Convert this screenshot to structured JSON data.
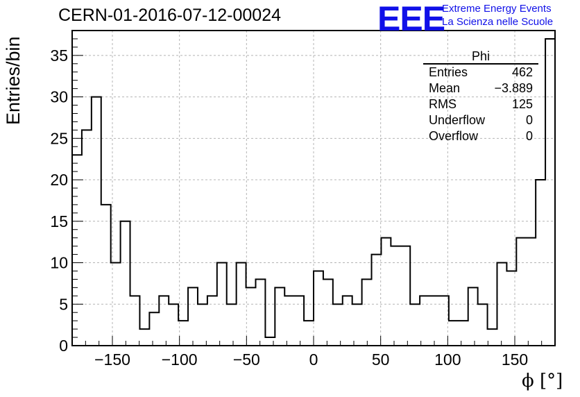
{
  "header": {
    "title": "CERN-01-2016-07-12-00024",
    "logo": "EEE",
    "logo_line1": "Extreme Energy Events",
    "logo_line2": "La Scienza nelle Scuole"
  },
  "stats_box": {
    "title": "Phi",
    "rows": [
      {
        "label": "Entries",
        "value": "462"
      },
      {
        "label": "Mean",
        "value": "−3.889"
      },
      {
        "label": "RMS",
        "value": "125"
      },
      {
        "label": "Underflow",
        "value": "0"
      },
      {
        "label": "Overflow",
        "value": "0"
      }
    ]
  },
  "chart_data": {
    "type": "bar",
    "subtype": "histogram",
    "xlabel": "ϕ [°]",
    "ylabel": "Entries/bin",
    "xlim": [
      -180,
      180
    ],
    "ylim": [
      0,
      38
    ],
    "bin_width": 7.2,
    "bin_edges_start": -180,
    "values": [
      23,
      26,
      30,
      17,
      10,
      15,
      6,
      2,
      4,
      6,
      5,
      3,
      7,
      5,
      6,
      10,
      5,
      10,
      7,
      8,
      1,
      7,
      6,
      6,
      3,
      9,
      8,
      5,
      6,
      5,
      8,
      11,
      13,
      12,
      12,
      5,
      6,
      6,
      6,
      3,
      3,
      7,
      5,
      2,
      10,
      9,
      13,
      13,
      20,
      37
    ],
    "xticks": [
      -150,
      -100,
      -50,
      0,
      50,
      100,
      150
    ],
    "xtick_labels": [
      "−150",
      "−100",
      "−50",
      "0",
      "50",
      "100",
      "150"
    ],
    "yticks": [
      0,
      5,
      10,
      15,
      20,
      25,
      30,
      35
    ],
    "ytick_labels": [
      "0",
      "5",
      "10",
      "15",
      "20",
      "25",
      "30",
      "35"
    ],
    "grid": true,
    "line_color": "#000000",
    "grid_color": "#b4b4b4"
  }
}
